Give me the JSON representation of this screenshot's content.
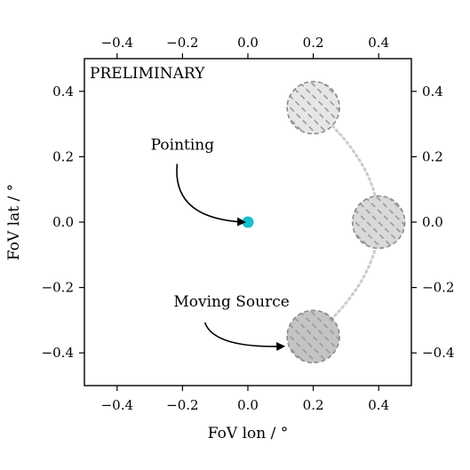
{
  "chart_data": {
    "type": "scatter",
    "xlabel": "FoV lon / °",
    "ylabel": "FoV lat / °",
    "xlim": [
      -0.5,
      0.5
    ],
    "ylim": [
      -0.5,
      0.5
    ],
    "x_ticks": [
      -0.4,
      -0.2,
      0.0,
      0.2,
      0.4
    ],
    "y_ticks": [
      -0.4,
      -0.2,
      0.0,
      0.2,
      0.4
    ],
    "x_tick_labels": [
      "−0.4",
      "−0.2",
      "0.0",
      "0.2",
      "0.4"
    ],
    "y_tick_labels": [
      "−0.4",
      "−0.2",
      "0.0",
      "0.2",
      "0.4"
    ],
    "top_axis_ticks": true,
    "right_axis_ticks": true,
    "grid": false,
    "watermark": "PRELIMINARY",
    "pointing": {
      "x": 0.0,
      "y": 0.0,
      "color": "#17becf"
    },
    "source_positions": [
      {
        "x": 0.2,
        "y": 0.35,
        "radius": 0.08,
        "shade": "#e6e6e6"
      },
      {
        "x": 0.4,
        "y": 0.0,
        "radius": 0.08,
        "shade": "#d9d9d9"
      },
      {
        "x": 0.2,
        "y": -0.35,
        "radius": 0.08,
        "shade": "#c4c4c4"
      }
    ],
    "track_color": "#cccccc",
    "annotations": [
      {
        "text": "Pointing",
        "x": -0.2,
        "y": 0.2,
        "target": {
          "x": 0.0,
          "y": 0.0
        }
      },
      {
        "text": "Moving Source",
        "x": -0.05,
        "y": -0.28,
        "target": {
          "x": 0.12,
          "y": -0.38
        }
      }
    ]
  }
}
